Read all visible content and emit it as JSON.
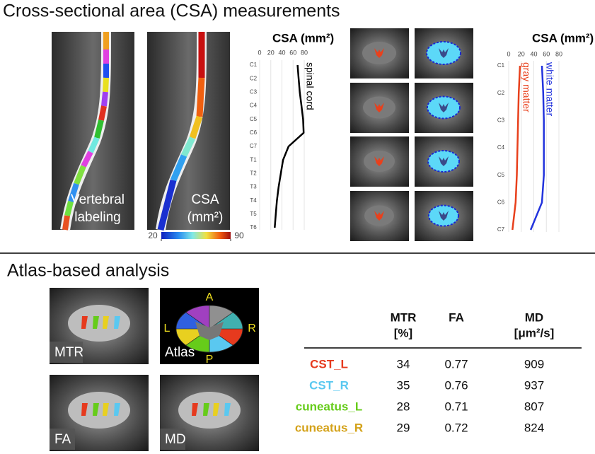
{
  "top": {
    "title": "Cross-sectional area (CSA) measurements",
    "images": [
      {
        "label": [
          "Vertebral",
          "labeling"
        ]
      },
      {
        "label": [
          "CSA",
          "(mm²)"
        ]
      }
    ],
    "colorbar": {
      "ticks": [
        20,
        90
      ]
    }
  },
  "chart_data": [
    {
      "type": "line",
      "orientation": "vertical",
      "title": "CSA (mm²)",
      "categories": [
        "C1",
        "C2",
        "C3",
        "C4",
        "C5",
        "C6",
        "C7",
        "T1",
        "T2",
        "T3",
        "T4",
        "T5",
        "T6"
      ],
      "xlim": [
        0,
        80
      ],
      "xticks": [
        0,
        20,
        40,
        60,
        80
      ],
      "grid": true,
      "series": [
        {
          "name": "spinal cord",
          "color": "#000000",
          "values": [
            68,
            70,
            72,
            75,
            78,
            79,
            52,
            42,
            38,
            34,
            31,
            29,
            27
          ]
        }
      ]
    },
    {
      "type": "line",
      "orientation": "vertical",
      "title": "CSA (mm²)",
      "categories": [
        "C1",
        "C2",
        "C3",
        "C4",
        "C5",
        "C6",
        "C7"
      ],
      "xlim": [
        0,
        80
      ],
      "xticks": [
        0,
        20,
        40,
        60,
        80
      ],
      "grid": true,
      "series": [
        {
          "name": "gray matter",
          "color": "#e8401c",
          "values": [
            18,
            16,
            15,
            14,
            13,
            11,
            6
          ]
        },
        {
          "name": "white matter",
          "color": "#2233dd",
          "values": [
            53,
            55,
            56,
            56,
            56,
            53,
            35
          ]
        }
      ]
    }
  ],
  "bottom": {
    "title": "Atlas-based analysis",
    "images": [
      {
        "label": "MTR"
      },
      {
        "label": "Atlas",
        "directions": [
          "A",
          "L",
          "R",
          "P"
        ]
      },
      {
        "label": "FA"
      },
      {
        "label": "MD"
      }
    ],
    "table": {
      "headers": [
        [
          "MTR",
          "[%]"
        ],
        [
          "FA"
        ],
        [
          "MD",
          "[μm²/s]"
        ]
      ],
      "rows": [
        {
          "name": "CST_L",
          "color": "#e63a1e",
          "values": [
            34,
            0.77,
            909
          ]
        },
        {
          "name": "CST_R",
          "color": "#5ac8f0",
          "values": [
            35,
            0.76,
            937
          ]
        },
        {
          "name": "cuneatus_L",
          "color": "#66cc1a",
          "values": [
            28,
            0.71,
            807
          ]
        },
        {
          "name": "cuneatus_R",
          "color": "#d4a21a",
          "values": [
            29,
            0.72,
            824
          ]
        }
      ]
    }
  }
}
